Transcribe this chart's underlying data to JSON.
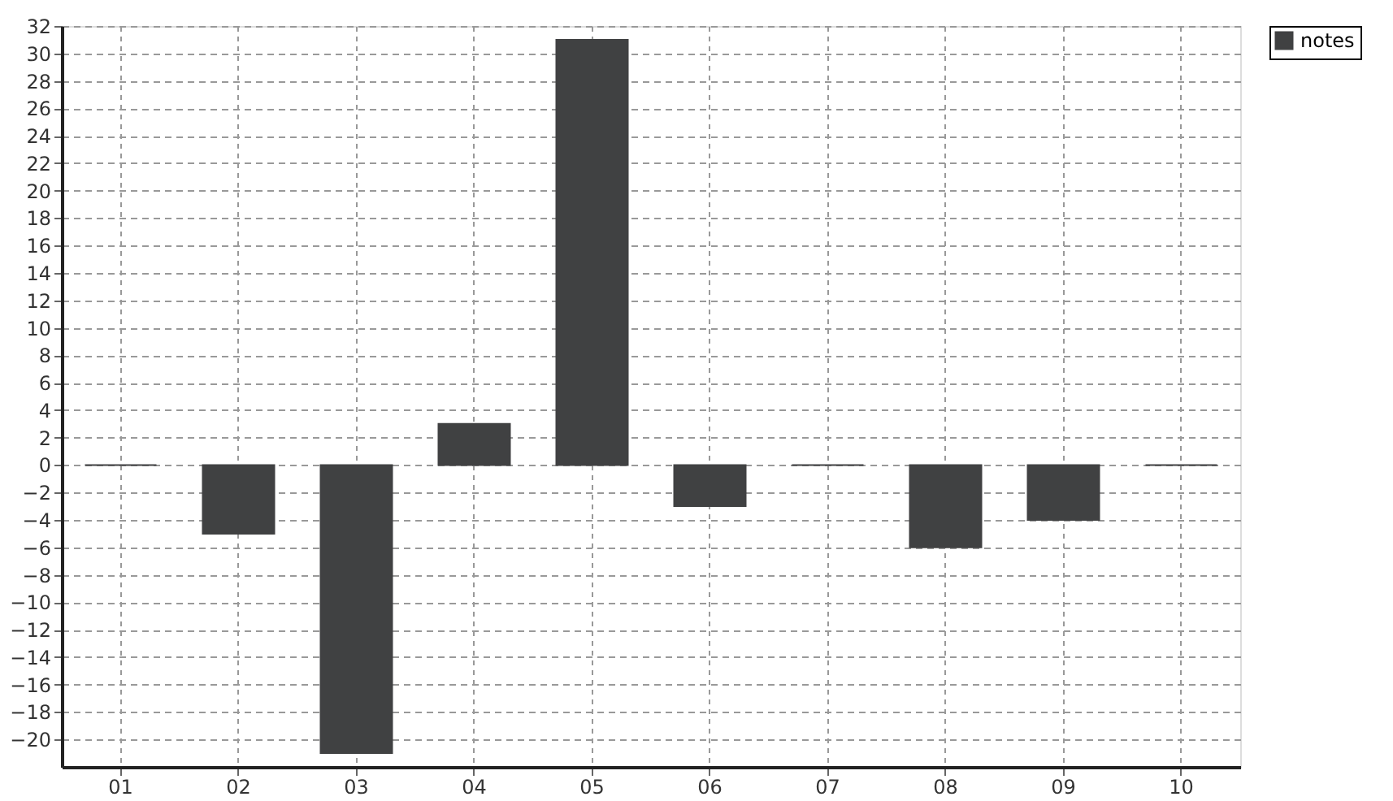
{
  "chart_data": {
    "type": "bar",
    "categories": [
      "01",
      "02",
      "03",
      "04",
      "05",
      "06",
      "07",
      "08",
      "09",
      "10"
    ],
    "series": [
      {
        "name": "notes",
        "color": "#404142",
        "values": [
          0,
          -5,
          -21,
          3,
          31,
          -3,
          0,
          -6,
          -4,
          0
        ]
      }
    ],
    "ylim": [
      -22,
      32
    ],
    "yticks": [
      -20,
      -18,
      -16,
      -14,
      -12,
      -10,
      -8,
      -6,
      -4,
      -2,
      0,
      2,
      4,
      6,
      8,
      10,
      12,
      14,
      16,
      18,
      20,
      22,
      24,
      26,
      28,
      30,
      32
    ],
    "grid": true,
    "legend": "top right"
  }
}
